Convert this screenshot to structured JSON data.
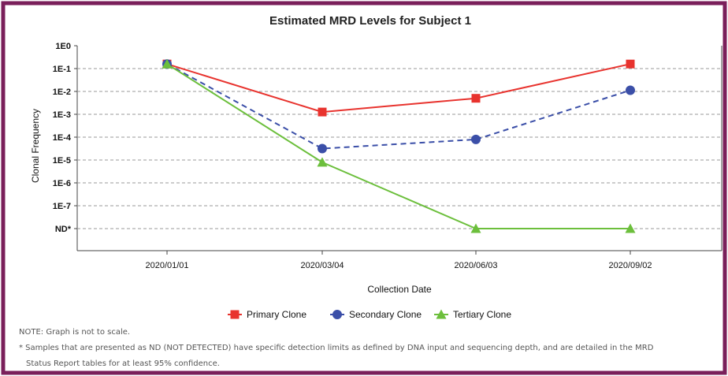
{
  "colors": {
    "frame": "#7a1f5a",
    "primary": "#e8332e",
    "secondary": "#3b4fa8",
    "tertiary": "#6cbf3c",
    "grid": "#9a9a9a",
    "axis": "#444444"
  },
  "chart_data": {
    "type": "line",
    "title": "Estimated MRD Levels for Subject 1",
    "xlabel": "Collection Date",
    "ylabel": "Clonal Frequency",
    "y_scale": "log",
    "categories": [
      "2020/01/01",
      "2020/03/04",
      "2020/06/03",
      "2020/09/02"
    ],
    "y_ticks": [
      "1E0",
      "1E-1",
      "1E-2",
      "1E-3",
      "1E-4",
      "1E-5",
      "1E-6",
      "1E-7",
      "ND*"
    ],
    "y_tick_levels": [
      0,
      -1,
      -2,
      -3,
      -4,
      -5,
      -6,
      -7,
      -8
    ],
    "gridlines": "horizontal dashed",
    "legend_position": "bottom",
    "series": [
      {
        "name": "Primary Clone",
        "marker": "square",
        "line": "solid",
        "color": "#e8332e",
        "values": [
          "0.15",
          "0.0012",
          "0.0048",
          "0.15"
        ],
        "log10": [
          -0.8,
          -2.9,
          -2.3,
          -0.8
        ]
      },
      {
        "name": "Secondary Clone",
        "marker": "circle",
        "line": "dashed",
        "color": "#3b4fa8",
        "values": [
          "0.15",
          "0.00003",
          "0.00007",
          "0.011"
        ],
        "log10": [
          -0.8,
          -4.5,
          -4.1,
          -1.95
        ]
      },
      {
        "name": "Tertiary Clone",
        "marker": "triangle",
        "line": "solid",
        "color": "#6cbf3c",
        "values": [
          "0.15",
          "0.000008",
          "ND*",
          "ND*"
        ],
        "log10": [
          -0.8,
          -5.1,
          -8,
          -8
        ]
      }
    ]
  },
  "notes": {
    "note1": "NOTE: Graph is not to scale.",
    "note2": "* Samples that are presented as ND (NOT DETECTED) have specific detection limits as defined by DNA input and sequencing depth, and are detailed in the MRD",
    "note3": "Status Report tables for at least 95% confidence."
  }
}
